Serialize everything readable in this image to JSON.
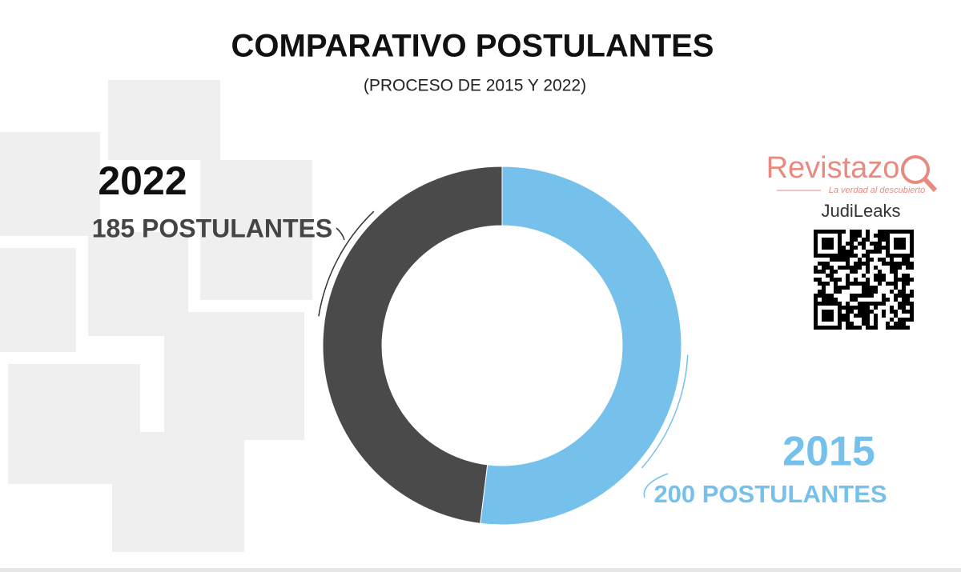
{
  "chart_data": {
    "type": "donut",
    "title": "COMPARATIVO POSTULANTES",
    "subtitle": "(PROCESO DE 2015 Y 2022)",
    "categories": [
      "2015",
      "2022"
    ],
    "values": [
      200,
      185
    ],
    "value_labels": [
      "200 POSTULANTES",
      "185 POSTULANTES"
    ],
    "colors": [
      "#75c1eb",
      "#4a4a4a"
    ]
  },
  "branding": {
    "name": "Revistazo",
    "tagline": "La verdad al descubierto",
    "source": "JudiLeaks"
  }
}
